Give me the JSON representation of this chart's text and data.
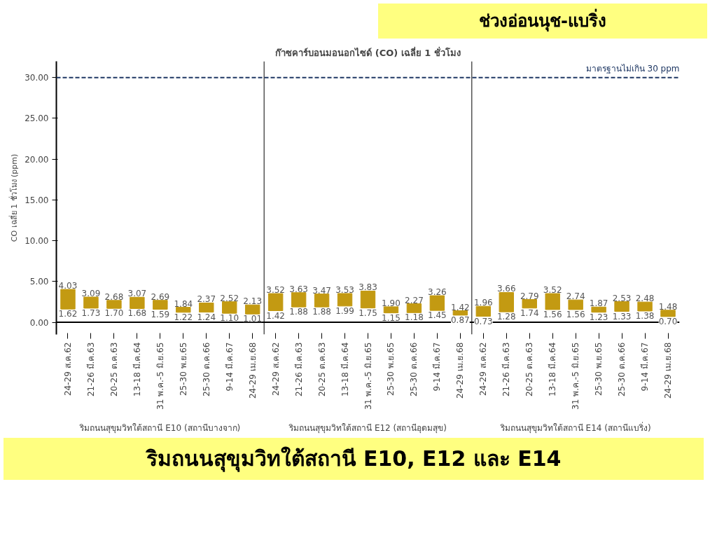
{
  "chart_data": {
    "type": "bar",
    "title": "ก๊าซคาร์บอนมอนอกไซด์ (CO) เฉลี่ย 1 ชั่วโมง",
    "subtitle": "ช่วงอ่อนนุช-แบริ่ง",
    "ylabel": "CO เฉลี่ย 1 ชั่วโมง (ppm)",
    "categories": [
      "24-29 ส.ค.62",
      "21-26 มี.ค.63",
      "20-25 ต.ค.63",
      "13-18 มี.ค.64",
      "31 พ.ค.-5 มิ.ย.65",
      "25-30 พ.ย.65",
      "25-30 ต.ค.66",
      "9-14 มี.ค.67",
      "24-29 เม.ย.68",
      "24-29 ส.ค.62",
      "21-26 มี.ค.63",
      "20-25 ต.ค.63",
      "13-18 มี.ค.64",
      "31 พ.ค.-5 มิ.ย.65",
      "25-30 พ.ย.65",
      "25-30 ต.ค.66",
      "9-14 มี.ค.67",
      "24-29 เม.ย.68",
      "24-29 ส.ค.62",
      "21-26 มี.ค.63",
      "20-25 ต.ค.63",
      "13-18 มี.ค.64",
      "31 พ.ค.-5 มิ.ย.65",
      "25-30 พ.ย.65",
      "25-30 ต.ค.66",
      "9-14 มี.ค.67",
      "24-29 เม.ย.68"
    ],
    "base": [
      1.62,
      1.73,
      1.7,
      1.68,
      1.59,
      1.22,
      1.24,
      1.1,
      1.01,
      1.42,
      1.88,
      1.88,
      1.99,
      1.75,
      1.15,
      1.18,
      1.45,
      0.87,
      0.73,
      1.28,
      1.74,
      1.56,
      1.56,
      1.23,
      1.33,
      1.38,
      0.7
    ],
    "values": [
      2.41,
      1.36,
      0.98,
      1.39,
      1.1,
      0.62,
      1.13,
      1.42,
      1.12,
      2.1,
      1.75,
      1.59,
      1.54,
      2.08,
      0.75,
      1.09,
      1.81,
      0.55,
      1.23,
      2.38,
      1.05,
      1.96,
      1.18,
      0.64,
      1.2,
      1.1,
      0.78
    ],
    "value_labels": [
      "4.03",
      "3.09",
      "2.68",
      "3.07",
      "2.69",
      "1.84",
      "2.37",
      "2.52",
      "2.13",
      "3.52",
      "3.63",
      "3.47",
      "3.53",
      "3.83",
      "1.90",
      "2.27",
      "3.26",
      "1.42",
      "1.96",
      "3.66",
      "2.79",
      "3.52",
      "2.74",
      "1.87",
      "2.53",
      "2.48",
      "1.48"
    ],
    "color": "#c39a12",
    "ylim": [
      -1.5,
      32
    ],
    "yticks": [
      {
        "value": 0,
        "label": "0.00"
      },
      {
        "value": 5,
        "label": "5.00"
      },
      {
        "value": 10,
        "label": "10.00"
      },
      {
        "value": 15,
        "label": "15.00"
      },
      {
        "value": 20,
        "label": "20.00"
      },
      {
        "value": 25,
        "label": "25.00"
      },
      {
        "value": 30,
        "label": "30.00"
      }
    ],
    "grid": false,
    "ref_lines": [
      {
        "axis": "y",
        "value": 30,
        "label": "มาตรฐานไม่เกิน 30 ppm",
        "color": "#1f3864",
        "line_style": "dashed"
      }
    ],
    "annotations": [
      "ริมถนนสุขุมวิทใต้สถานี E10 (สถานีบางจาก)",
      "ริมถนนสุขุมวิทใต้สถานี E12 (สถานีอุดมสุข)",
      "ริมถนนสุขุมวิทใต้สถานี E14 (สถานีแบริ่ง)",
      "ริมถนนสุขุมวิทใต้สถานี E10, E12 และ E14",
      "1.62",
      "1.73",
      "1.70",
      "1.68",
      "1.59",
      "1.22",
      "1.24",
      "1.10",
      "1.01",
      "1.42",
      "1.88",
      "1.88",
      "1.99",
      "1.75",
      "1.15",
      "1.18",
      "1.45",
      "0.87",
      "0.73",
      "1.28",
      "1.74",
      "1.56",
      "1.56",
      "1.23",
      "1.33",
      "1.38",
      "0.70"
    ]
  }
}
